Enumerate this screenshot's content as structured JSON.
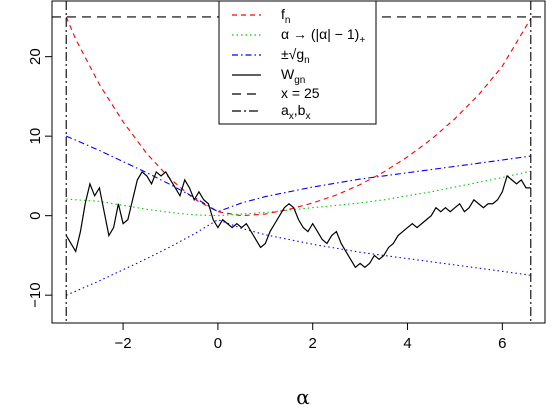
{
  "chart_data": {
    "type": "line",
    "xlabel": "α",
    "ylabel": "",
    "xlim": [
      -3.5,
      6.9
    ],
    "ylim": [
      -13.5,
      27
    ],
    "x_ticks": [
      -2,
      0,
      2,
      4,
      6
    ],
    "x_tick_labels": [
      "−2",
      "0",
      "2",
      "4",
      "6"
    ],
    "y_ticks": [
      -10,
      0,
      10,
      20
    ],
    "y_tick_labels": [
      "−10",
      "0",
      "10",
      "20"
    ],
    "grid": false,
    "legend_position": "top-center",
    "legend": [
      {
        "label": "f",
        "sub": "n",
        "color": "#ff0000",
        "dash": "5,4"
      },
      {
        "label": "α → (|α| − 1)",
        "sub": "+",
        "color": "#00cc00",
        "dash": "1.5,3"
      },
      {
        "label": "±√g",
        "sub": "n",
        "color": "#0000ff",
        "dash": "6,3,1.5,3"
      },
      {
        "label": "W",
        "sub": "gn",
        "color": "#000000",
        "dash": ""
      },
      {
        "label": "x = 25",
        "sub": "",
        "color": "#000000",
        "dash": "9,6"
      },
      {
        "label": "a",
        "sub": "x",
        "label2": ",b",
        "sub2": "x",
        "color": "#000000",
        "dash": "9,3,2,3"
      }
    ],
    "hline": {
      "y": 25
    },
    "vlines": [
      -3.2,
      6.6
    ],
    "series": [
      {
        "key": "fn",
        "color": "#ff0000",
        "x": [
          -3.2,
          -3.0,
          -2.5,
          -2.0,
          -1.5,
          -1.0,
          -0.5,
          0.0,
          0.5,
          1.0,
          1.5,
          2.0,
          2.5,
          3.0,
          3.5,
          4.0,
          4.5,
          5.0,
          5.5,
          6.0,
          6.6
        ],
        "y": [
          25,
          22.2,
          16.5,
          11.8,
          7.8,
          4.6,
          2.1,
          0.5,
          0.0,
          0.2,
          0.8,
          1.6,
          2.6,
          3.9,
          5.5,
          7.4,
          9.6,
          12.2,
          15.2,
          18.8,
          24.8
        ]
      },
      {
        "key": "relu",
        "color": "#00cc00",
        "x": [
          -3.2,
          -3.0,
          -2.5,
          -2.0,
          -1.5,
          -1.0,
          -0.5,
          0.0,
          0.5,
          1.0,
          1.5,
          2.0,
          2.5,
          3.0,
          3.5,
          4.0,
          4.5,
          5.0,
          5.5,
          6.0,
          6.6
        ],
        "y": [
          2.1,
          2.0,
          1.8,
          1.3,
          0.8,
          0.4,
          0.1,
          0.0,
          0.2,
          0.4,
          0.7,
          1.0,
          1.3,
          1.6,
          2.0,
          2.5,
          3.0,
          3.6,
          4.2,
          4.8,
          5.6
        ]
      },
      {
        "key": "sqrtg_pos",
        "color": "#0000ff",
        "x": [
          -3.2,
          -3.0,
          -2.5,
          -2.0,
          -1.5,
          -1.0,
          -0.5,
          0.0,
          0.5,
          1.0,
          1.5,
          2.0,
          2.5,
          3.0,
          3.5,
          4.0,
          4.5,
          5.0,
          5.5,
          6.0,
          6.6
        ],
        "y": [
          10,
          9.5,
          8.2,
          6.8,
          5.4,
          3.9,
          2.3,
          0.5,
          1.6,
          2.4,
          3.0,
          3.6,
          4.1,
          4.6,
          5.0,
          5.4,
          5.8,
          6.2,
          6.6,
          7.0,
          7.5
        ]
      },
      {
        "key": "sqrtg_neg",
        "color": "#0000ff",
        "x": [
          -3.2,
          -3.0,
          -2.5,
          -2.0,
          -1.5,
          -1.0,
          -0.5,
          0.0,
          0.5,
          1.0,
          1.5,
          2.0,
          2.5,
          3.0,
          3.5,
          4.0,
          4.5,
          5.0,
          5.5,
          6.0,
          6.6
        ],
        "y": [
          -10,
          -9.5,
          -8.2,
          -6.8,
          -5.4,
          -3.9,
          -2.3,
          -0.5,
          -1.6,
          -2.4,
          -3.0,
          -3.6,
          -4.1,
          -4.6,
          -5.0,
          -5.4,
          -5.8,
          -6.2,
          -6.6,
          -7.0,
          -7.5
        ]
      },
      {
        "key": "W",
        "color": "#000000",
        "x": [
          -3.2,
          -3.1,
          -3.0,
          -2.9,
          -2.8,
          -2.7,
          -2.6,
          -2.5,
          -2.4,
          -2.3,
          -2.2,
          -2.1,
          -2.0,
          -1.9,
          -1.8,
          -1.7,
          -1.6,
          -1.5,
          -1.4,
          -1.3,
          -1.2,
          -1.1,
          -1.0,
          -0.9,
          -0.8,
          -0.7,
          -0.6,
          -0.5,
          -0.4,
          -0.3,
          -0.2,
          -0.1,
          0.0,
          0.1,
          0.2,
          0.3,
          0.4,
          0.5,
          0.6,
          0.7,
          0.8,
          0.9,
          1.0,
          1.1,
          1.2,
          1.3,
          1.4,
          1.5,
          1.6,
          1.7,
          1.8,
          1.9,
          2.0,
          2.1,
          2.2,
          2.3,
          2.4,
          2.5,
          2.6,
          2.7,
          2.8,
          2.9,
          3.0,
          3.1,
          3.2,
          3.3,
          3.4,
          3.5,
          3.6,
          3.7,
          3.8,
          3.9,
          4.0,
          4.1,
          4.2,
          4.3,
          4.4,
          4.5,
          4.6,
          4.7,
          4.8,
          4.9,
          5.0,
          5.1,
          5.2,
          5.3,
          5.4,
          5.5,
          5.6,
          5.7,
          5.8,
          5.9,
          6.0,
          6.1,
          6.2,
          6.3,
          6.4,
          6.5,
          6.6
        ],
        "y": [
          -2.5,
          -3.5,
          -4.5,
          -2.0,
          1.5,
          4.0,
          2.5,
          3.5,
          0.5,
          -2.5,
          -1.5,
          1.5,
          -1.0,
          -0.5,
          2.0,
          4.5,
          5.5,
          5.0,
          4.0,
          5.5,
          5.0,
          5.5,
          4.5,
          3.5,
          2.5,
          4.5,
          3.5,
          2.0,
          3.0,
          2.0,
          1.5,
          -0.5,
          -1.5,
          -0.5,
          -1.0,
          -1.5,
          -1.0,
          -1.5,
          -1.0,
          -2.0,
          -3.0,
          -4.0,
          -3.5,
          -2.0,
          -1.0,
          0.0,
          1.0,
          1.5,
          1.0,
          -0.5,
          -1.5,
          -2.0,
          -1.0,
          -2.0,
          -3.0,
          -3.5,
          -2.5,
          -2.0,
          -3.5,
          -4.5,
          -5.5,
          -6.5,
          -6.0,
          -6.5,
          -6.0,
          -5.0,
          -5.5,
          -5.0,
          -4.0,
          -3.5,
          -2.5,
          -2.0,
          -1.5,
          -1.0,
          -1.5,
          -1.0,
          -0.5,
          0.0,
          1.0,
          0.5,
          1.0,
          0.5,
          1.0,
          1.5,
          0.5,
          1.0,
          2.0,
          1.5,
          1.0,
          1.5,
          1.5,
          2.0,
          3.0,
          5.0,
          4.5,
          4.0,
          4.5,
          3.5,
          3.5
        ]
      }
    ]
  }
}
